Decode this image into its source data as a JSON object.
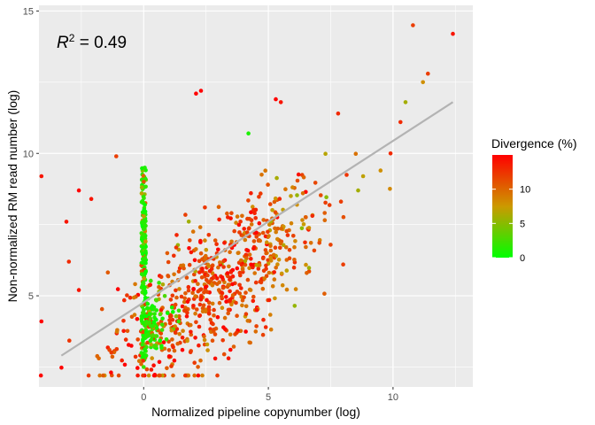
{
  "chart_data": {
    "type": "scatter",
    "xlabel": "Normalized pipeline copynumber (log)",
    "ylabel": "Non-normalized RM read number (log)",
    "xlim": [
      -4.2,
      13.2
    ],
    "ylim": [
      1.8,
      15.2
    ],
    "x_ticks": [
      0,
      5,
      10
    ],
    "y_ticks": [
      5,
      10,
      15
    ],
    "x_tick_labels": [
      "0",
      "5",
      "10"
    ],
    "y_tick_labels": [
      "5",
      "10",
      "15"
    ],
    "grid": true,
    "annotation": {
      "r_symbol": "R",
      "r_exponent": "2",
      "text": " = 0.49"
    },
    "fit_line": {
      "x": [
        -3.3,
        12.4
      ],
      "y": [
        2.9,
        11.8
      ],
      "color": "#b3b3b3"
    },
    "color_scale": {
      "title": "Divergence (%)",
      "min": 0,
      "max": 15,
      "low_color": "#00ff00",
      "mid_color": "#cc9900",
      "high_color": "#ff0000",
      "breaks": [
        0,
        5,
        10
      ],
      "break_labels": [
        "0",
        "5",
        "10"
      ]
    },
    "highlight_points": [
      {
        "x": 10.8,
        "y": 14.5,
        "divergence": 12
      },
      {
        "x": 12.4,
        "y": 14.2,
        "divergence": 14
      },
      {
        "x": 11.4,
        "y": 12.8,
        "divergence": 12
      },
      {
        "x": 11.2,
        "y": 12.5,
        "divergence": 8
      },
      {
        "x": 10.5,
        "y": 11.8,
        "divergence": 6
      },
      {
        "x": 10.3,
        "y": 11.1,
        "divergence": 13
      },
      {
        "x": 2.3,
        "y": 12.2,
        "divergence": 15
      },
      {
        "x": 2.1,
        "y": 12.1,
        "divergence": 15
      },
      {
        "x": 5.3,
        "y": 11.9,
        "divergence": 15
      },
      {
        "x": 5.5,
        "y": 11.8,
        "divergence": 14
      },
      {
        "x": 4.2,
        "y": 10.7,
        "divergence": 1
      },
      {
        "x": 7.8,
        "y": 11.4,
        "divergence": 13
      },
      {
        "x": 9.5,
        "y": 9.4,
        "divergence": 8
      },
      {
        "x": 8.8,
        "y": 9.2,
        "divergence": 7
      },
      {
        "x": 8.6,
        "y": 8.7,
        "divergence": 6
      },
      {
        "x": 9.9,
        "y": 10.0,
        "divergence": 13
      },
      {
        "x": -4.1,
        "y": 9.2,
        "divergence": 14
      },
      {
        "x": -2.6,
        "y": 8.7,
        "divergence": 15
      },
      {
        "x": -3.1,
        "y": 7.6,
        "divergence": 14
      },
      {
        "x": -2.1,
        "y": 8.4,
        "divergence": 14
      },
      {
        "x": -1.1,
        "y": 9.9,
        "divergence": 12
      },
      {
        "x": -4.1,
        "y": 4.1,
        "divergence": 15
      },
      {
        "x": -3.0,
        "y": 6.2,
        "divergence": 13
      },
      {
        "x": -2.6,
        "y": 5.2,
        "divergence": 14
      },
      {
        "x": -1.8,
        "y": 2.8,
        "divergence": 10
      },
      {
        "x": -0.1,
        "y": 2.6,
        "divergence": 10
      },
      {
        "x": 0.0,
        "y": 2.5,
        "divergence": 2
      },
      {
        "x": 0.1,
        "y": 2.9,
        "divergence": 1
      },
      {
        "x": 1.4,
        "y": 4.1,
        "divergence": 2
      }
    ],
    "point_generation": {
      "note": "bulk point cloud",
      "n_main": 680,
      "n_green_column": 200,
      "n_green_cluster": 110
    }
  }
}
